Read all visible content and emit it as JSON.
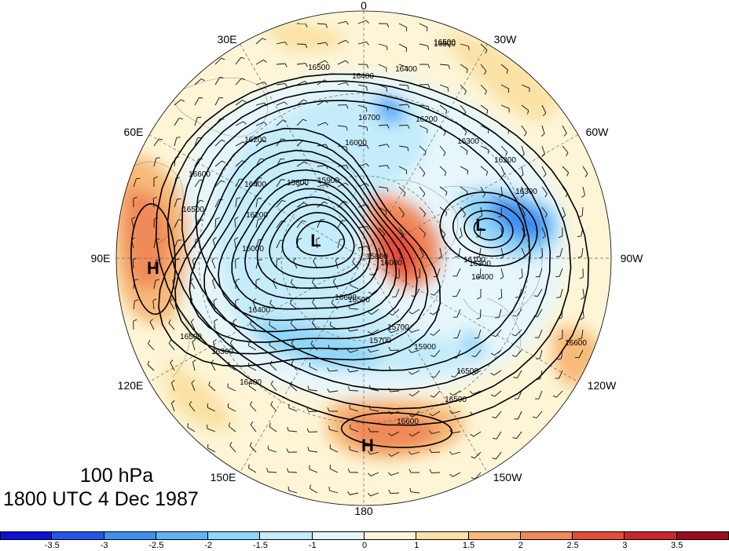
{
  "title": {
    "level": "100 hPa",
    "time": "1800 UTC 4 Dec 1987"
  },
  "longitude_labels": [
    "0",
    "30W",
    "60W",
    "90W",
    "120W",
    "150W",
    "180",
    "150E",
    "120E",
    "90E",
    "60E",
    "30E"
  ],
  "contour_labels": [
    "16500",
    "16500",
    "16400",
    "16400",
    "16200",
    "16300",
    "16200",
    "16700",
    "16600",
    "16500",
    "16200",
    "16300",
    "15900",
    "16000",
    "15800",
    "16400",
    "16200",
    "16000",
    "16300",
    "16400",
    "16100",
    "16000",
    "15700",
    "15900",
    "16500",
    "16500",
    "16400",
    "16300",
    "15800",
    "16600",
    "16500",
    "16400",
    "15700",
    "16500",
    "16500",
    "16600",
    "16600"
  ],
  "centers": {
    "labels": [
      "L",
      "L",
      "H",
      "H"
    ]
  },
  "colorbar": {
    "colors": [
      "#0c12d6",
      "#2357ea",
      "#3f8ff2",
      "#5fb4f8",
      "#8fd6f8",
      "#c4ecfa",
      "#e6f6fb",
      "#fdf5d6",
      "#fbe1a4",
      "#f7ba79",
      "#f08a59",
      "#e74b3a",
      "#c9262e",
      "#9b0d1e"
    ],
    "ticks": [
      "-3.5",
      "-3",
      "-2.5",
      "-2",
      "-1.5",
      "-1",
      "0",
      "1",
      "1.5",
      "2",
      "2.5",
      "3",
      "3.5"
    ]
  }
}
